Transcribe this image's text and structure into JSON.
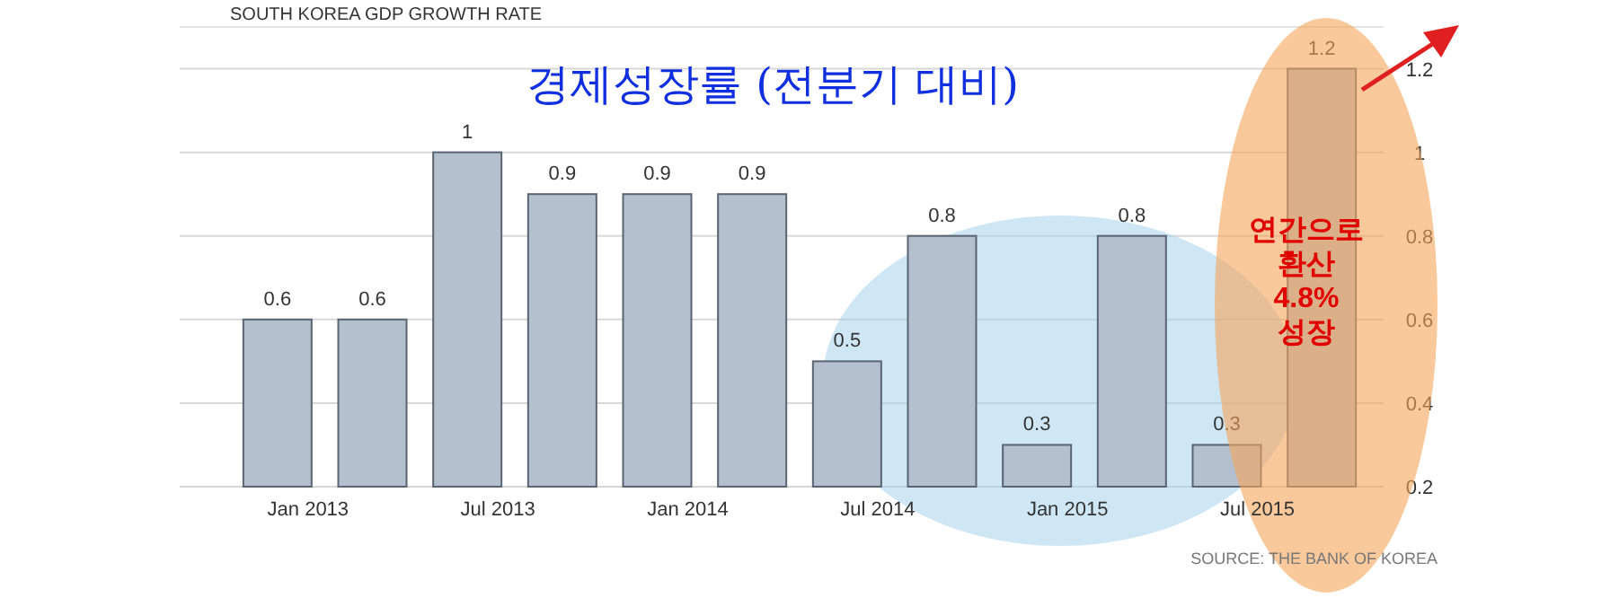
{
  "chart_data": {
    "type": "bar",
    "title": "SOUTH KOREA GDP GROWTH RATE",
    "subtitle": "경제성장률 (전분기 대비)",
    "categories": [
      "Jan 2013",
      null,
      "Jul 2013",
      null,
      "Jan 2014",
      null,
      "Jul 2014",
      null,
      "Jan 2015",
      null,
      "Jul 2015",
      null
    ],
    "values": [
      0.6,
      0.6,
      1,
      0.9,
      0.9,
      0.9,
      0.5,
      0.8,
      0.3,
      0.8,
      0.3,
      1.2
    ],
    "color": "#b4c0ce",
    "ylim": [
      0.2,
      1.3
    ],
    "yticks": [
      0.2,
      0.4,
      0.6,
      0.8,
      1,
      1.2
    ],
    "grid": "y",
    "data_labels": true,
    "annotations": [
      "연간으로\n환산\n4.8%\n성장",
      "SOURCE: THE BANK OF KOREA"
    ]
  }
}
